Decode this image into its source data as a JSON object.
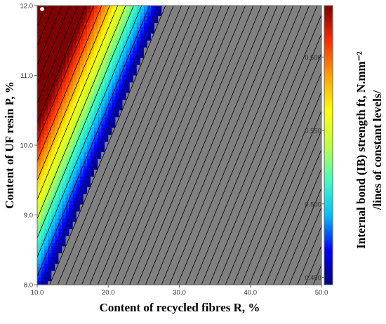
{
  "chart_data": {
    "type": "heatmap",
    "xlabel": "Content of recycled fibres R, %",
    "ylabel": "Content of UF resin P, %",
    "colorbar_label_line1": "Internal bond (IB) strength ft, N.mm⁻²",
    "colorbar_label_line2": "/lines of constant levels/",
    "xlim": [
      10.0,
      50.0
    ],
    "ylim": [
      8.0,
      12.0
    ],
    "x_ticks": [
      "10.0",
      "20.0",
      "30.0",
      "40.0",
      "50.0"
    ],
    "y_ticks": [
      "8.0",
      "9.0",
      "10.0",
      "11.0",
      "12.0"
    ],
    "colorbar_range": [
      0.445,
      0.635
    ],
    "colorbar_ticks": [
      "0.450",
      "0.500",
      "0.550",
      "0.600"
    ],
    "colormap": [
      "#00007f",
      "#0000ff",
      "#00bfff",
      "#40ffbf",
      "#bfff40",
      "#ffff00",
      "#ff9f00",
      "#ff2a00",
      "#7f0000"
    ],
    "below_range_color": "#808080",
    "contour_spacing": 0.02,
    "model": {
      "ref_value": 0.6,
      "ref_R": 15.0,
      "ref_P": 11.0,
      "slope_per_R": -0.0178,
      "slope_per_P": 0.0725
    },
    "marker": {
      "R": 10.7,
      "P": 11.95,
      "color": "#ffffff"
    },
    "grid": false
  }
}
